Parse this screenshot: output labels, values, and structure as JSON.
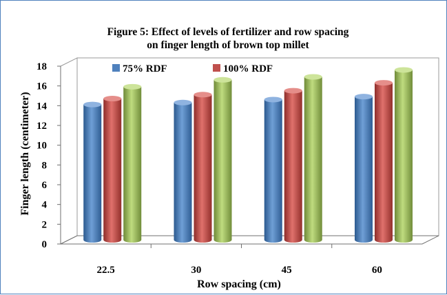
{
  "chart_data": {
    "type": "bar",
    "title_lines": [
      "Figure 5: Effect of  levels of fertilizer and row spacing",
      "on finger length of brown top millet"
    ],
    "xlabel": "Row spacing (cm)",
    "ylabel": "Finger length (centimeter)",
    "categories": [
      "22.5",
      "30",
      "45",
      "60"
    ],
    "y_ticks": [
      "0",
      "2",
      "4",
      "6",
      "8",
      "10",
      "12",
      "14",
      "16",
      "18"
    ],
    "ylim": [
      0,
      18
    ],
    "grid": false,
    "legend_position": "top-left",
    "series": [
      {
        "name": "75% RDF",
        "color": "#4f81bd",
        "values": [
          13.7,
          13.9,
          14.2,
          14.5
        ]
      },
      {
        "name": "100% RDF",
        "color": "#c0504d",
        "values": [
          14.3,
          14.7,
          15.1,
          15.9
        ]
      },
      {
        "name": "",
        "color": "#9bbb59",
        "values": [
          15.5,
          16.2,
          16.5,
          17.2
        ]
      }
    ]
  }
}
